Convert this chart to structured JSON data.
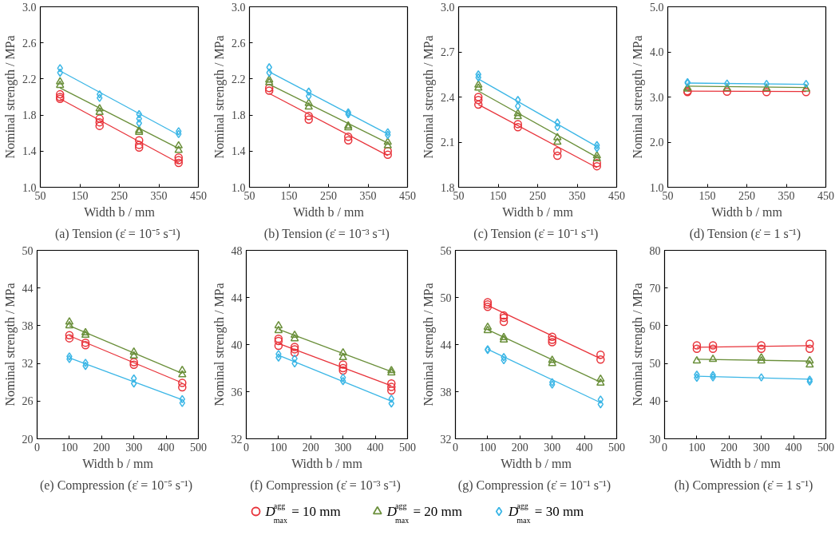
{
  "chart_data": [
    {
      "type": "scatter",
      "title": "(a)  Tension (ε̇ = 10⁻⁵ s⁻¹)",
      "xlabel": "Width b / mm",
      "ylabel": "Nominal strength / MPa",
      "xlim": [
        50,
        450
      ],
      "xticks": [
        50,
        150,
        250,
        350,
        450
      ],
      "ylim": [
        1.0,
        3.0
      ],
      "yticks": [
        {
          "value": 1,
          "label": "1.0"
        },
        1.4,
        1.8,
        2.2,
        2.6,
        {
          "value": 3,
          "label": "3.0"
        }
      ],
      "grid": false,
      "legend": "bottom",
      "series": [
        {
          "name": "D$^{agg}$$_{max}$ = 10 mm",
          "type": "scatter",
          "marker": "circle",
          "color": "#e8333a",
          "x": [
            100,
            100,
            100,
            200,
            200,
            200,
            300,
            300,
            300,
            400,
            400,
            400
          ],
          "values": [
            2.03,
            2.0,
            1.98,
            1.76,
            1.72,
            1.68,
            1.52,
            1.47,
            1.44,
            1.33,
            1.3,
            1.27
          ]
        },
        {
          "name": "D$^{agg}$$_{max}$ = 20 mm",
          "type": "scatter",
          "marker": "triangle",
          "color": "#6a8f3a",
          "x": [
            100,
            100,
            200,
            200,
            300,
            300,
            400,
            400
          ],
          "values": [
            2.17,
            2.13,
            1.87,
            1.83,
            1.63,
            1.61,
            1.46,
            1.41
          ]
        },
        {
          "name": "D$^{agg}$$_{max}$ = 30 mm",
          "type": "scatter",
          "marker": "diamond",
          "color": "#3bb6e6",
          "x": [
            100,
            100,
            200,
            200,
            300,
            300,
            300,
            400,
            400
          ],
          "values": [
            2.32,
            2.27,
            2.03,
            1.99,
            1.81,
            1.76,
            1.71,
            1.62,
            1.59
          ]
        },
        {
          "type": "line",
          "color": "#e8333a",
          "x": [
            100,
            400
          ],
          "values": [
            1.98,
            1.27
          ]
        },
        {
          "type": "line",
          "color": "#6a8f3a",
          "x": [
            100,
            400
          ],
          "values": [
            2.1,
            1.43
          ]
        },
        {
          "type": "line",
          "color": "#3bb6e6",
          "x": [
            100,
            400
          ],
          "values": [
            2.29,
            1.58
          ]
        }
      ]
    },
    {
      "type": "scatter",
      "title": "(b)  Tension (ε̇ = 10⁻³ s⁻¹)",
      "xlabel": "Width b / mm",
      "ylabel": "Nominal strength / MPa",
      "xlim": [
        50,
        450
      ],
      "xticks": [
        50,
        150,
        250,
        350,
        450
      ],
      "ylim": [
        1.0,
        3.0
      ],
      "yticks": [
        {
          "value": 1,
          "label": "1.0"
        },
        1.4,
        1.8,
        2.2,
        2.6,
        {
          "value": 3,
          "label": "3.0"
        }
      ],
      "grid": false,
      "series": [
        {
          "type": "scatter",
          "marker": "circle",
          "color": "#e8333a",
          "x": [
            100,
            100,
            200,
            200,
            300,
            300,
            400,
            400
          ],
          "values": [
            2.1,
            2.07,
            1.79,
            1.75,
            1.56,
            1.52,
            1.4,
            1.36
          ]
        },
        {
          "type": "scatter",
          "marker": "triangle",
          "color": "#6a8f3a",
          "x": [
            100,
            100,
            200,
            200,
            300,
            300,
            400,
            400
          ],
          "values": [
            2.19,
            2.16,
            1.93,
            1.89,
            1.68,
            1.66,
            1.5,
            1.46
          ]
        },
        {
          "type": "scatter",
          "marker": "diamond",
          "color": "#3bb6e6",
          "x": [
            100,
            100,
            200,
            200,
            300,
            300,
            400,
            400
          ],
          "values": [
            2.33,
            2.27,
            2.06,
            2.01,
            1.83,
            1.81,
            1.61,
            1.58
          ]
        },
        {
          "type": "line",
          "color": "#e8333a",
          "x": [
            100,
            400
          ],
          "values": [
            2.04,
            1.35
          ]
        },
        {
          "type": "line",
          "color": "#6a8f3a",
          "x": [
            100,
            400
          ],
          "values": [
            2.14,
            1.49
          ]
        },
        {
          "type": "line",
          "color": "#3bb6e6",
          "x": [
            100,
            400
          ],
          "values": [
            2.28,
            1.59
          ]
        }
      ]
    },
    {
      "type": "scatter",
      "title": "(c)  Tension (ε̇ = 10⁻¹ s⁻¹)",
      "xlabel": "Width b / mm",
      "ylabel": "Nominal strength / MPa",
      "xlim": [
        50,
        450
      ],
      "xticks": [
        50,
        150,
        250,
        350,
        450
      ],
      "ylim": [
        1.8,
        3.0
      ],
      "yticks": [
        1.8,
        2.1,
        2.4,
        2.7,
        {
          "value": 3,
          "label": "3.0"
        }
      ],
      "grid": false,
      "series": [
        {
          "type": "scatter",
          "marker": "circle",
          "color": "#e8333a",
          "x": [
            100,
            100,
            100,
            200,
            200,
            300,
            300,
            400,
            400
          ],
          "values": [
            2.4,
            2.38,
            2.35,
            2.22,
            2.2,
            2.04,
            2.01,
            1.96,
            1.94
          ]
        },
        {
          "type": "scatter",
          "marker": "triangle",
          "color": "#6a8f3a",
          "x": [
            100,
            100,
            200,
            200,
            300,
            300,
            400,
            400
          ],
          "values": [
            2.48,
            2.46,
            2.29,
            2.27,
            2.13,
            2.1,
            2.01,
            1.99
          ]
        },
        {
          "type": "scatter",
          "marker": "diamond",
          "color": "#3bb6e6",
          "x": [
            100,
            100,
            200,
            200,
            300,
            300,
            400,
            400
          ],
          "values": [
            2.55,
            2.53,
            2.38,
            2.34,
            2.23,
            2.2,
            2.08,
            2.06
          ]
        },
        {
          "type": "line",
          "color": "#e8333a",
          "x": [
            100,
            400
          ],
          "values": [
            2.35,
            1.93
          ]
        },
        {
          "type": "line",
          "color": "#6a8f3a",
          "x": [
            100,
            400
          ],
          "values": [
            2.44,
            2.0
          ]
        },
        {
          "type": "line",
          "color": "#3bb6e6",
          "x": [
            100,
            400
          ],
          "values": [
            2.52,
            2.07
          ]
        }
      ]
    },
    {
      "type": "scatter",
      "title": "(d)  Tension (ε̇ = 1 s⁻¹)",
      "xlabel": "Width b / mm",
      "ylabel": "Nominal strength / MPa",
      "xlim": [
        50,
        450
      ],
      "xticks": [
        50,
        150,
        250,
        350,
        450
      ],
      "ylim": [
        1.0,
        5.0
      ],
      "yticks": [
        {
          "value": 1,
          "label": "1.0"
        },
        {
          "value": 2,
          "label": "2.0"
        },
        {
          "value": 3,
          "label": "3.0"
        },
        {
          "value": 4,
          "label": "4.0"
        },
        {
          "value": 5,
          "label": "5.0"
        }
      ],
      "grid": false,
      "series": [
        {
          "type": "scatter",
          "marker": "circle",
          "color": "#e8333a",
          "x": [
            100,
            100,
            200,
            300,
            400
          ],
          "values": [
            3.13,
            3.11,
            3.12,
            3.11,
            3.11
          ]
        },
        {
          "type": "scatter",
          "marker": "triangle",
          "color": "#6a8f3a",
          "x": [
            100,
            100,
            200,
            300,
            400
          ],
          "values": [
            3.2,
            3.18,
            3.19,
            3.19,
            3.18
          ]
        },
        {
          "type": "scatter",
          "marker": "diamond",
          "color": "#3bb6e6",
          "x": [
            100,
            100,
            200,
            300,
            400
          ],
          "values": [
            3.33,
            3.31,
            3.3,
            3.29,
            3.29
          ]
        },
        {
          "type": "line",
          "color": "#e8333a",
          "x": [
            100,
            400
          ],
          "values": [
            3.13,
            3.12
          ]
        },
        {
          "type": "line",
          "color": "#6a8f3a",
          "x": [
            100,
            400
          ],
          "values": [
            3.24,
            3.21
          ]
        },
        {
          "type": "line",
          "color": "#3bb6e6",
          "x": [
            100,
            400
          ],
          "values": [
            3.31,
            3.28
          ]
        }
      ]
    },
    {
      "type": "scatter",
      "title": "(e)  Compression (ε̇ = 10⁻⁵ s⁻¹)",
      "xlabel": "Width b / mm",
      "ylabel": "Nominal strength / MPa",
      "xlim": [
        0,
        500
      ],
      "xticks": [
        0,
        100,
        200,
        300,
        400,
        500
      ],
      "ylim": [
        20,
        50
      ],
      "yticks": [
        20,
        26,
        32,
        38,
        44,
        50
      ],
      "grid": false,
      "series": [
        {
          "type": "scatter",
          "marker": "circle",
          "color": "#e8333a",
          "x": [
            100,
            100,
            150,
            150,
            300,
            300,
            450,
            450
          ],
          "values": [
            36.5,
            36.0,
            35.3,
            34.9,
            32.2,
            31.8,
            28.9,
            28.2
          ]
        },
        {
          "type": "scatter",
          "marker": "triangle",
          "color": "#6a8f3a",
          "x": [
            100,
            100,
            150,
            150,
            300,
            300,
            450,
            450
          ],
          "values": [
            38.6,
            38.0,
            36.9,
            36.5,
            33.8,
            33.2,
            30.9,
            30.2
          ]
        },
        {
          "type": "scatter",
          "marker": "diamond",
          "color": "#3bb6e6",
          "x": [
            100,
            100,
            150,
            150,
            300,
            300,
            450,
            450
          ],
          "values": [
            33.1,
            32.7,
            32.1,
            31.6,
            29.6,
            28.8,
            26.3,
            25.7
          ]
        },
        {
          "type": "line",
          "color": "#e8333a",
          "x": [
            100,
            450
          ],
          "values": [
            36.4,
            28.9
          ]
        },
        {
          "type": "line",
          "color": "#6a8f3a",
          "x": [
            100,
            450
          ],
          "values": [
            38.0,
            30.4
          ]
        },
        {
          "type": "line",
          "color": "#3bb6e6",
          "x": [
            100,
            450
          ],
          "values": [
            32.9,
            26.2
          ]
        }
      ]
    },
    {
      "type": "scatter",
      "title": "(f)  Compression (ε̇ = 10⁻³ s⁻¹)",
      "xlabel": "Width b / mm",
      "ylabel": "Nominal strength / MPa",
      "xlim": [
        0,
        500
      ],
      "xticks": [
        0,
        100,
        200,
        300,
        400,
        500
      ],
      "ylim": [
        32,
        48
      ],
      "yticks": [
        32,
        36,
        40,
        44,
        48
      ],
      "grid": false,
      "series": [
        {
          "type": "scatter",
          "marker": "circle",
          "color": "#e8333a",
          "x": [
            100,
            100,
            100,
            150,
            150,
            150,
            300,
            300,
            300,
            450,
            450,
            450
          ],
          "values": [
            40.5,
            40.3,
            39.9,
            39.8,
            39.6,
            39.3,
            38.3,
            38.0,
            37.8,
            36.7,
            36.4,
            36.1
          ]
        },
        {
          "type": "scatter",
          "marker": "triangle",
          "color": "#6a8f3a",
          "x": [
            100,
            100,
            150,
            150,
            300,
            300,
            450,
            450
          ],
          "values": [
            41.6,
            41.2,
            40.8,
            40.5,
            39.3,
            38.9,
            37.8,
            37.6
          ]
        },
        {
          "type": "scatter",
          "marker": "diamond",
          "color": "#3bb6e6",
          "x": [
            100,
            100,
            150,
            150,
            300,
            300,
            450,
            450
          ],
          "values": [
            39.2,
            38.9,
            38.8,
            38.4,
            37.2,
            36.9,
            35.4,
            35.0
          ]
        },
        {
          "type": "line",
          "color": "#e8333a",
          "x": [
            100,
            450
          ],
          "values": [
            40.1,
            36.5
          ]
        },
        {
          "type": "line",
          "color": "#6a8f3a",
          "x": [
            100,
            450
          ],
          "values": [
            41.3,
            37.7
          ]
        },
        {
          "type": "line",
          "color": "#3bb6e6",
          "x": [
            100,
            450
          ],
          "values": [
            39.1,
            35.2
          ]
        }
      ]
    },
    {
      "type": "scatter",
      "title": "(g)  Compression (ε̇ = 10⁻¹ s⁻¹)",
      "xlabel": "Width b / mm",
      "ylabel": "Nominal strength / MPa",
      "xlim": [
        0,
        500
      ],
      "xticks": [
        0,
        100,
        200,
        300,
        400,
        500
      ],
      "ylim": [
        32,
        56
      ],
      "yticks": [
        32,
        38,
        44,
        50,
        56
      ],
      "grid": false,
      "series": [
        {
          "type": "scatter",
          "marker": "circle",
          "color": "#e8333a",
          "x": [
            100,
            100,
            100,
            150,
            150,
            150,
            300,
            300,
            300,
            450,
            450
          ],
          "values": [
            49.4,
            49.1,
            48.8,
            47.7,
            47.4,
            46.9,
            45.0,
            44.6,
            44.3,
            42.7,
            42.1
          ]
        },
        {
          "type": "scatter",
          "marker": "triangle",
          "color": "#6a8f3a",
          "x": [
            100,
            100,
            150,
            150,
            300,
            300,
            450,
            450
          ],
          "values": [
            46.2,
            45.8,
            44.9,
            44.6,
            42.0,
            41.6,
            39.6,
            39.1
          ]
        },
        {
          "type": "scatter",
          "marker": "diamond",
          "color": "#3bb6e6",
          "x": [
            100,
            100,
            150,
            150,
            300,
            300,
            450,
            450
          ],
          "values": [
            43.4,
            43.3,
            42.4,
            42.0,
            39.2,
            38.9,
            37.0,
            36.4
          ]
        },
        {
          "type": "line",
          "color": "#e8333a",
          "x": [
            100,
            450
          ],
          "values": [
            49.0,
            42.2
          ]
        },
        {
          "type": "line",
          "color": "#6a8f3a",
          "x": [
            100,
            450
          ],
          "values": [
            45.9,
            39.2
          ]
        },
        {
          "type": "line",
          "color": "#3bb6e6",
          "x": [
            100,
            450
          ],
          "values": [
            43.4,
            36.6
          ]
        }
      ]
    },
    {
      "type": "scatter",
      "title": "(h)  Compression (ε̇ = 1 s⁻¹)",
      "xlabel": "Width b / mm",
      "ylabel": "Nominal strength / MPa",
      "xlim": [
        0,
        500
      ],
      "xticks": [
        0,
        100,
        200,
        300,
        400,
        500
      ],
      "ylim": [
        30,
        80
      ],
      "yticks": [
        30,
        40,
        50,
        60,
        70,
        80
      ],
      "grid": false,
      "series": [
        {
          "type": "scatter",
          "marker": "circle",
          "color": "#e8333a",
          "x": [
            100,
            100,
            150,
            150,
            300,
            300,
            450,
            450
          ],
          "values": [
            54.8,
            53.9,
            54.8,
            53.9,
            54.8,
            53.9,
            55.2,
            53.9
          ]
        },
        {
          "type": "scatter",
          "marker": "triangle",
          "color": "#6a8f3a",
          "x": [
            100,
            150,
            300,
            300,
            450,
            450
          ],
          "values": [
            50.7,
            51.1,
            51.5,
            50.7,
            50.7,
            49.6
          ]
        },
        {
          "type": "scatter",
          "marker": "diamond",
          "color": "#3bb6e6",
          "x": [
            100,
            100,
            150,
            150,
            300,
            450,
            450
          ],
          "values": [
            47.0,
            46.2,
            46.9,
            46.3,
            46.3,
            45.7,
            45.2
          ]
        },
        {
          "type": "line",
          "color": "#e8333a",
          "x": [
            100,
            450
          ],
          "values": [
            54.3,
            54.7
          ]
        },
        {
          "type": "line",
          "color": "#6a8f3a",
          "x": [
            100,
            450
          ],
          "values": [
            51.1,
            50.6
          ]
        },
        {
          "type": "line",
          "color": "#3bb6e6",
          "x": [
            100,
            450
          ],
          "values": [
            46.6,
            45.8
          ]
        }
      ]
    }
  ]
}
